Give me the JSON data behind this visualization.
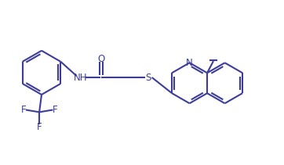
{
  "bg_color": "#ffffff",
  "line_color": "#3d3d99",
  "line_width": 1.5,
  "font_size": 8.5,
  "figsize": [
    3.62,
    2.11
  ],
  "dpi": 100,
  "xlim": [
    0,
    10
  ],
  "ylim": [
    0,
    5.8
  ]
}
